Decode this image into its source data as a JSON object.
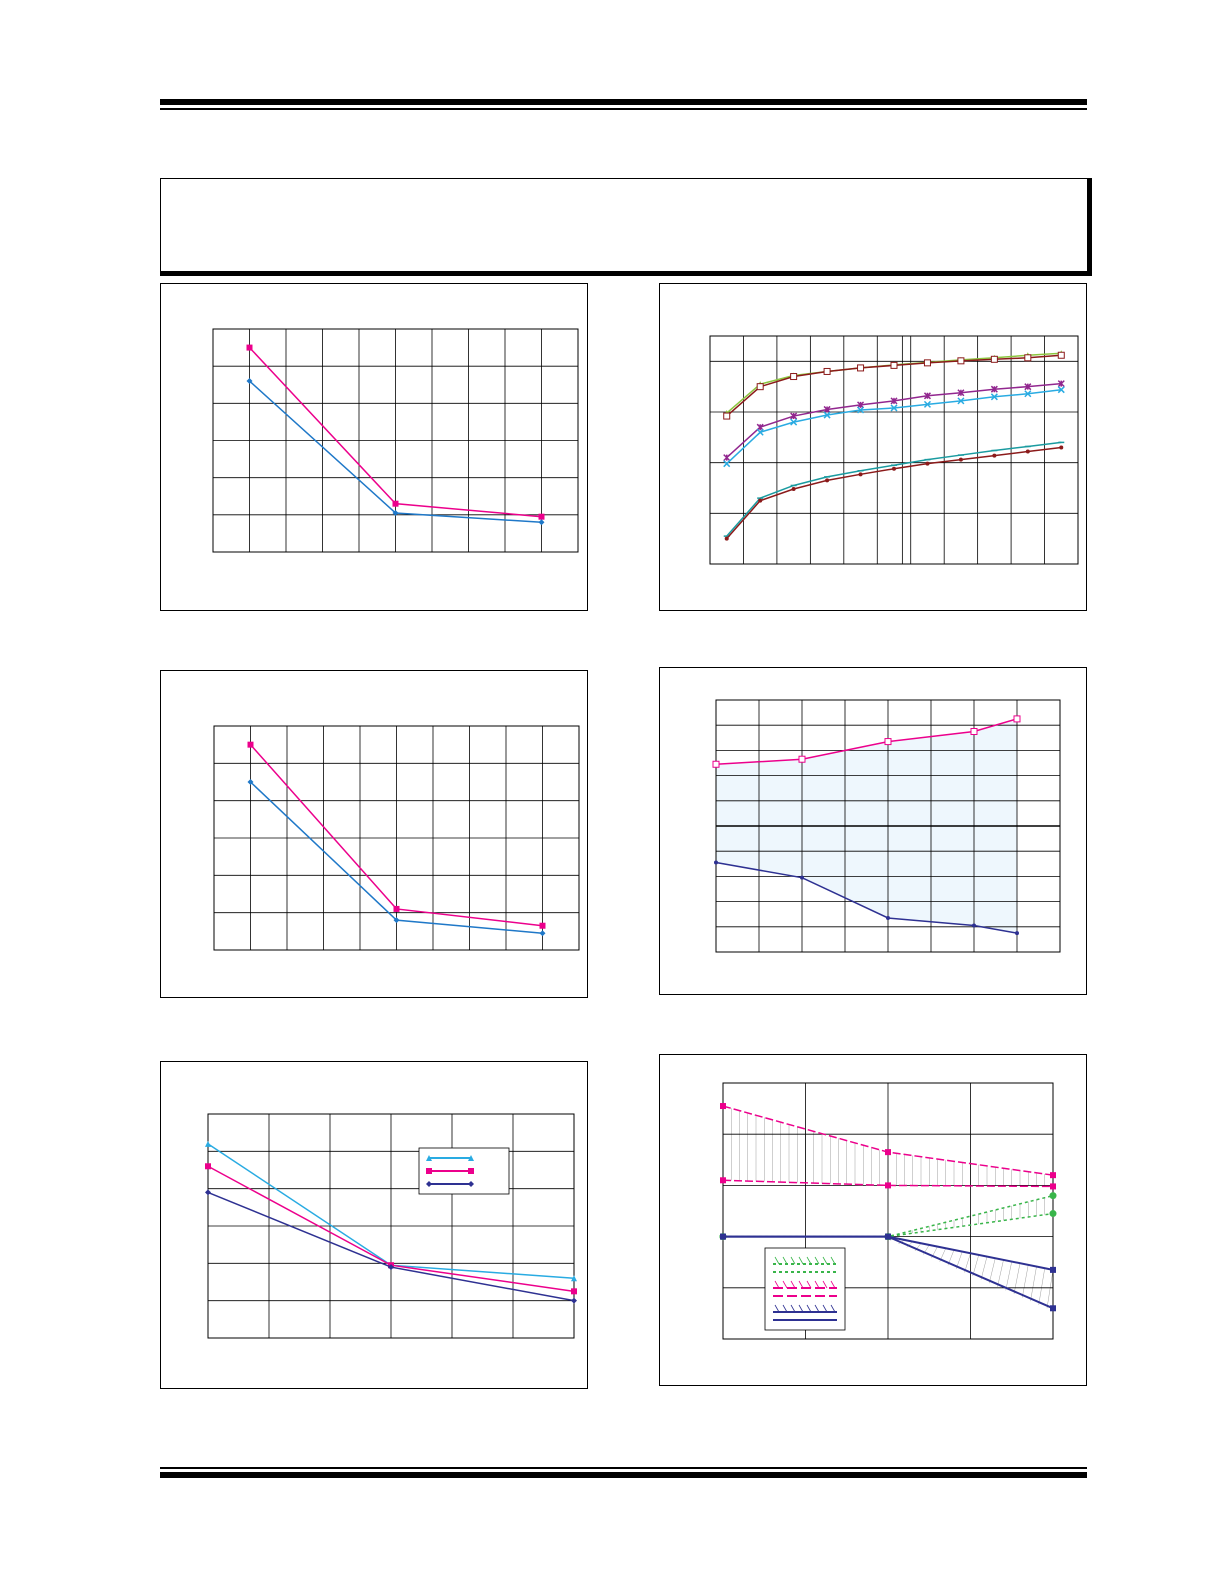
{
  "colors": {
    "pink": "#ec008c",
    "blue_line": "#1f78c8",
    "navy": "#2e3192",
    "cyan": "#29abe2",
    "purple": "#92278f",
    "teal": "#1a9ba0",
    "brown": "#8b1a1a",
    "olive": "#8cc63f",
    "green": "#39b54a",
    "shade": "#eef7fd",
    "grid": "#000000"
  },
  "chart_data": [
    {
      "type": "line",
      "grid": true,
      "xlim": [
        0,
        10
      ],
      "ylim": [
        0,
        6
      ],
      "series": [
        {
          "color": "pink",
          "marker": "square",
          "x": [
            1,
            5,
            9
          ],
          "y": [
            5.5,
            1.3,
            0.95
          ]
        },
        {
          "color": "blue_line",
          "marker": "diamond",
          "x": [
            1,
            5,
            9
          ],
          "y": [
            4.6,
            1.05,
            0.8
          ]
        }
      ]
    },
    {
      "type": "line",
      "grid": true,
      "xlim": [
        0,
        11
      ],
      "ylim": [
        0,
        4.5
      ],
      "series": [
        {
          "color": "olive",
          "marker": "triangle",
          "x": [
            0.5,
            1.5,
            2.5,
            3.5,
            4.5,
            5.5,
            6.5,
            7.5,
            8.5,
            9.5,
            10.5
          ],
          "y": [
            2.98,
            3.55,
            3.72,
            3.8,
            3.87,
            3.93,
            3.98,
            4.03,
            4.07,
            4.12,
            4.16
          ]
        },
        {
          "color": "brown",
          "marker": "square-open",
          "x": [
            0.5,
            1.5,
            2.5,
            3.5,
            4.5,
            5.5,
            6.5,
            7.5,
            8.5,
            9.5,
            10.5
          ],
          "y": [
            2.92,
            3.5,
            3.7,
            3.8,
            3.87,
            3.92,
            3.97,
            4.01,
            4.04,
            4.07,
            4.12
          ]
        },
        {
          "color": "purple",
          "marker": "star",
          "x": [
            0.5,
            1.5,
            2.5,
            3.5,
            4.5,
            5.5,
            6.5,
            7.5,
            8.5,
            9.5,
            10.5
          ],
          "y": [
            2.1,
            2.7,
            2.92,
            3.05,
            3.14,
            3.22,
            3.32,
            3.38,
            3.45,
            3.5,
            3.56
          ]
        },
        {
          "color": "cyan",
          "marker": "cross",
          "x": [
            0.5,
            1.5,
            2.5,
            3.5,
            4.5,
            5.5,
            6.5,
            7.5,
            8.5,
            9.5,
            10.5
          ],
          "y": [
            1.98,
            2.6,
            2.8,
            2.94,
            3.04,
            3.08,
            3.15,
            3.22,
            3.3,
            3.36,
            3.44
          ]
        },
        {
          "color": "teal",
          "marker": "tick",
          "x": [
            0.5,
            1.5,
            2.5,
            3.5,
            4.5,
            5.5,
            6.5,
            7.5,
            8.5,
            9.5,
            10.5
          ],
          "y": [
            0.55,
            1.3,
            1.55,
            1.72,
            1.84,
            1.95,
            2.06,
            2.15,
            2.24,
            2.32,
            2.4
          ]
        },
        {
          "color": "brown",
          "marker": "dot",
          "x": [
            0.5,
            1.5,
            2.5,
            3.5,
            4.5,
            5.5,
            6.5,
            7.5,
            8.5,
            9.5,
            10.5
          ],
          "y": [
            0.5,
            1.25,
            1.48,
            1.65,
            1.77,
            1.88,
            1.98,
            2.06,
            2.14,
            2.22,
            2.3
          ]
        }
      ]
    },
    {
      "type": "line",
      "grid": true,
      "xlim": [
        0,
        10
      ],
      "ylim": [
        0,
        6
      ],
      "series": [
        {
          "color": "pink",
          "marker": "square",
          "x": [
            1,
            5,
            9
          ],
          "y": [
            5.5,
            1.1,
            0.65
          ]
        },
        {
          "color": "blue_line",
          "marker": "diamond",
          "x": [
            1,
            5,
            9
          ],
          "y": [
            4.5,
            0.8,
            0.45
          ]
        }
      ]
    },
    {
      "type": "area",
      "grid": true,
      "xlim": [
        0,
        8
      ],
      "ylim": [
        -5,
        5
      ],
      "shade_between": true,
      "series": [
        {
          "color": "pink",
          "marker": "square-open",
          "x": [
            0,
            2,
            4,
            6,
            7
          ],
          "y": [
            2.45,
            2.65,
            3.35,
            3.75,
            4.25
          ]
        },
        {
          "color": "navy",
          "marker": "dot",
          "x": [
            0,
            2,
            4,
            6,
            7
          ],
          "y": [
            -1.45,
            -2.05,
            -3.65,
            -3.95,
            -4.25
          ]
        }
      ]
    },
    {
      "type": "line",
      "grid": true,
      "xlim": [
        0,
        6
      ],
      "ylim": [
        0,
        6
      ],
      "legend": {
        "position": "top-right",
        "entries": 3
      },
      "series": [
        {
          "color": "cyan",
          "marker": "triangle",
          "x": [
            0,
            3,
            6
          ],
          "y": [
            5.2,
            1.95,
            1.6
          ]
        },
        {
          "color": "pink",
          "marker": "square",
          "x": [
            0,
            3,
            6
          ],
          "y": [
            4.6,
            1.95,
            1.25
          ]
        },
        {
          "color": "navy",
          "marker": "diamond",
          "x": [
            0,
            3,
            6
          ],
          "y": [
            3.9,
            1.9,
            1.0
          ]
        }
      ]
    },
    {
      "type": "area",
      "grid": true,
      "xlim": [
        0,
        4
      ],
      "ylim": [
        -2,
        3
      ],
      "legend": {
        "position": "bottom-left",
        "entries": 3
      },
      "series": [
        {
          "color": "pink",
          "style": "dash",
          "x": [
            0,
            2,
            4
          ],
          "y": [
            2.55,
            1.65,
            1.2
          ]
        },
        {
          "color": "pink",
          "style": "dash",
          "x": [
            0,
            2,
            4
          ],
          "y": [
            1.1,
            1.0,
            0.98
          ]
        },
        {
          "color": "green",
          "style": "dot",
          "x": [
            0,
            2,
            4
          ],
          "y": [
            0,
            0,
            0.8
          ]
        },
        {
          "color": "green",
          "style": "dot",
          "x": [
            0,
            2,
            4
          ],
          "y": [
            0,
            0,
            0.45
          ]
        },
        {
          "color": "navy",
          "style": "solid",
          "x": [
            0,
            2,
            4
          ],
          "y": [
            0,
            0,
            -0.65
          ]
        },
        {
          "color": "navy",
          "style": "solid",
          "x": [
            0,
            2,
            4
          ],
          "y": [
            0,
            0,
            -1.4
          ]
        }
      ]
    }
  ]
}
